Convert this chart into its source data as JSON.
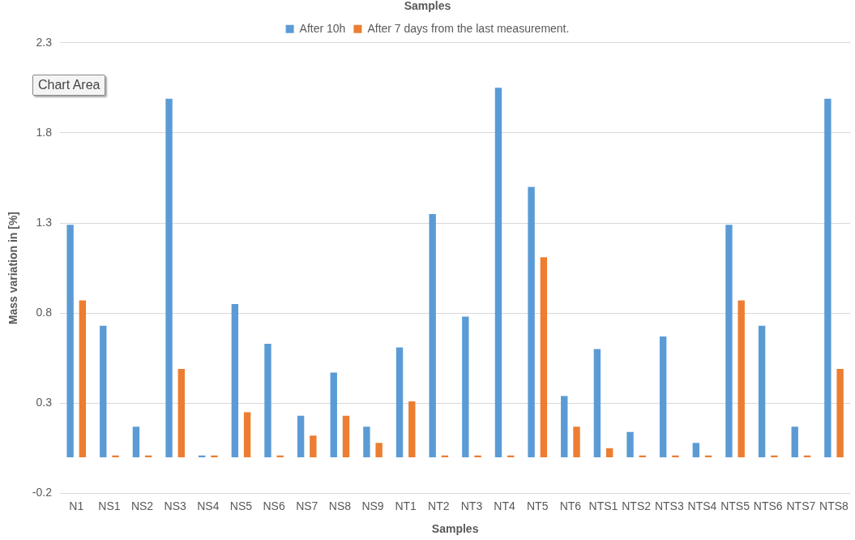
{
  "chart_data": {
    "type": "bar",
    "title": "Samples",
    "xlabel": "Samples",
    "ylabel": "Mass variation in [%]",
    "categories": [
      "N1",
      "NS1",
      "NS2",
      "NS3",
      "NS4",
      "NS5",
      "NS6",
      "NS7",
      "NS8",
      "NS9",
      "NT1",
      "NT2",
      "NT3",
      "NT4",
      "NT5",
      "NT6",
      "NTS1",
      "NTS2",
      "NTS3",
      "NTS4",
      "NTS5",
      "NTS6",
      "NTS7",
      "NTS8"
    ],
    "series": [
      {
        "name": "After 10h",
        "color": "#5b9bd5",
        "values": [
          1.29,
          0.73,
          0.17,
          1.99,
          0.01,
          0.85,
          0.63,
          0.23,
          0.47,
          0.17,
          0.61,
          1.35,
          0.78,
          2.05,
          1.5,
          0.34,
          0.6,
          0.14,
          0.67,
          0.08,
          1.29,
          0.73,
          0.17,
          1.99
        ]
      },
      {
        "name": "After 7 days from the last measurement.",
        "color": "#ed7d31",
        "values": [
          0.87,
          0.01,
          0.01,
          0.49,
          0.01,
          0.25,
          0.01,
          0.12,
          0.23,
          0.08,
          0.31,
          0.01,
          0.01,
          0.01,
          1.11,
          0.17,
          0.05,
          0.01,
          0.01,
          0.01,
          0.87,
          0.01,
          0.01,
          0.49
        ]
      }
    ],
    "ylim": [
      -0.2,
      2.3
    ],
    "yticks": [
      -0.2,
      0.3,
      0.8,
      1.3,
      1.8,
      2.3
    ],
    "grid": "y",
    "legend": "top",
    "annotations": [
      "Chart Area"
    ]
  }
}
